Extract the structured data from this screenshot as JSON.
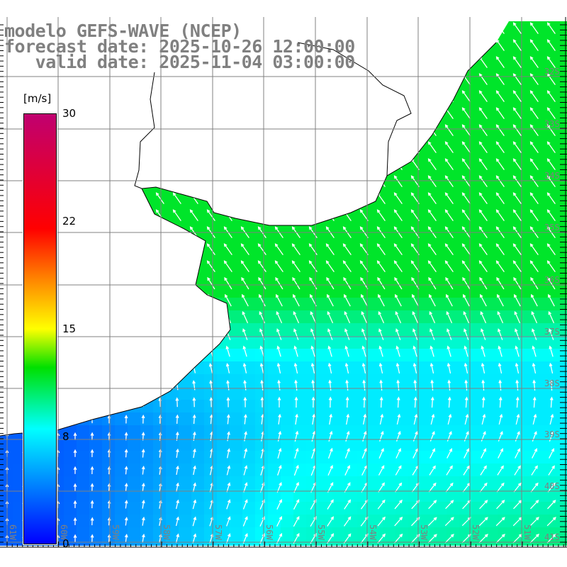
{
  "title": {
    "line1": "modelo GEFS-WAVE (NCEP)",
    "line2": "forecast date: 2025-10-26 12:00:00",
    "line3": "   valid date: 2025-11-04 03:00:00"
  },
  "colorbar": {
    "unit": "[m/s]",
    "ticks": [
      {
        "value": 30,
        "label": "30"
      },
      {
        "value": 22,
        "label": "22"
      },
      {
        "value": 15,
        "label": "15"
      },
      {
        "value": 8,
        "label": "8"
      },
      {
        "value": 0,
        "label": "0"
      }
    ],
    "range": [
      0,
      30
    ],
    "colors": [
      "#0000ff",
      "#00ffff",
      "#00e000",
      "#ffff00",
      "#ff0000",
      "#c00070"
    ]
  },
  "lon_labels": [
    "61W",
    "60W",
    "59W",
    "58W",
    "57W",
    "56W",
    "55W",
    "54W",
    "53W",
    "52W",
    "51W"
  ],
  "lat_labels": [
    "32S",
    "33S",
    "34S",
    "35S",
    "36S",
    "37S",
    "38S",
    "39S",
    "40S",
    "41S"
  ],
  "field": "wind speed and direction"
}
